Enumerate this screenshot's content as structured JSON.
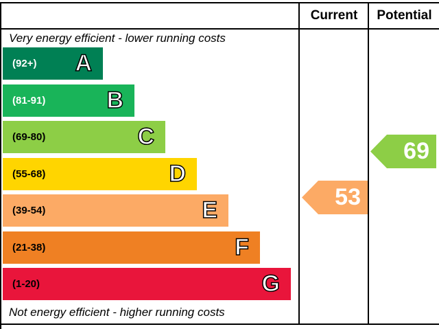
{
  "headers": {
    "current": "Current",
    "potential": "Potential"
  },
  "captions": {
    "top": "Very energy efficient - lower running costs",
    "bottom": "Not energy efficient - higher running costs"
  },
  "chart_data": {
    "type": "bar",
    "categories": [
      "A",
      "B",
      "C",
      "D",
      "E",
      "F",
      "G"
    ],
    "bands": [
      {
        "letter": "A",
        "range": "(92+)",
        "color": "#008054",
        "text_color": "#ffffff"
      },
      {
        "letter": "B",
        "range": "(81-91)",
        "color": "#19b459",
        "text_color": "#ffffff"
      },
      {
        "letter": "C",
        "range": "(69-80)",
        "color": "#8dce46",
        "text_color": "#000000"
      },
      {
        "letter": "D",
        "range": "(55-68)",
        "color": "#ffd500",
        "text_color": "#000000"
      },
      {
        "letter": "E",
        "range": "(39-54)",
        "color": "#fcaa65",
        "text_color": "#000000"
      },
      {
        "letter": "F",
        "range": "(21-38)",
        "color": "#ef8023",
        "text_color": "#000000"
      },
      {
        "letter": "G",
        "range": "(1-20)",
        "color": "#e9153b",
        "text_color": "#000000"
      }
    ],
    "current": {
      "value": "53",
      "band": "E",
      "color": "#fcaa65"
    },
    "potential": {
      "value": "69",
      "band": "C",
      "color": "#8dce46"
    }
  }
}
